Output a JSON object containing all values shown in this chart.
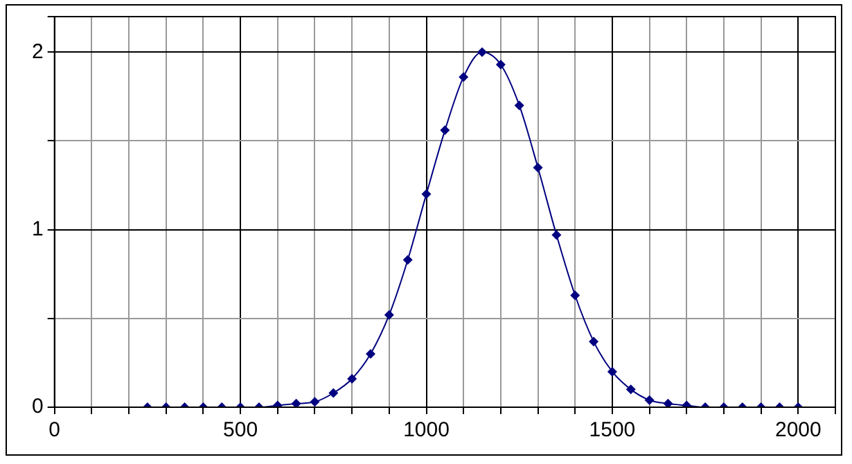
{
  "chart_data": {
    "type": "line",
    "x": [
      250,
      300,
      350,
      400,
      450,
      500,
      550,
      600,
      650,
      700,
      750,
      800,
      850,
      900,
      950,
      1000,
      1050,
      1100,
      1150,
      1200,
      1250,
      1300,
      1350,
      1400,
      1450,
      1500,
      1550,
      1600,
      1650,
      1700,
      1750,
      1800,
      1850,
      1900,
      1950,
      2000
    ],
    "series": [
      {
        "color": "#000080",
        "values": [
          0,
          0,
          0,
          0,
          0,
          0,
          0,
          0.01,
          0.02,
          0.03,
          0.08,
          0.16,
          0.3,
          0.52,
          0.83,
          1.2,
          1.56,
          1.86,
          2,
          1.93,
          1.7,
          1.35,
          0.97,
          0.63,
          0.37,
          0.2,
          0.1,
          0.04,
          0.02,
          0.01,
          0,
          0,
          0,
          0,
          0,
          0
        ]
      }
    ],
    "xlim": [
      0,
      2100
    ],
    "ylim": [
      0,
      2.2
    ],
    "xticks": [
      0,
      {
        "value": 100,
        "label": null
      },
      {
        "value": 200,
        "label": null
      },
      {
        "value": 300,
        "label": null
      },
      {
        "value": 400,
        "label": null
      },
      500,
      {
        "value": 600,
        "label": null
      },
      {
        "value": 700,
        "label": null
      },
      {
        "value": 800,
        "label": null
      },
      {
        "value": 900,
        "label": null
      },
      1000,
      {
        "value": 1100,
        "label": null
      },
      {
        "value": 1200,
        "label": null
      },
      {
        "value": 1300,
        "label": null
      },
      {
        "value": 1400,
        "label": null
      },
      1500,
      {
        "value": 1600,
        "label": null
      },
      {
        "value": 1700,
        "label": null
      },
      {
        "value": 1800,
        "label": null
      },
      {
        "value": 1900,
        "label": null
      },
      2000,
      {
        "value": 2100,
        "label": null
      }
    ],
    "yticks": [
      0,
      {
        "value": 0.5,
        "label": null
      },
      1,
      {
        "value": 1.5,
        "label": null
      },
      2,
      {
        "value": 2.2,
        "label": null
      }
    ],
    "grid": true,
    "legend": false,
    "marker": "diamond",
    "line_style": "solid"
  }
}
